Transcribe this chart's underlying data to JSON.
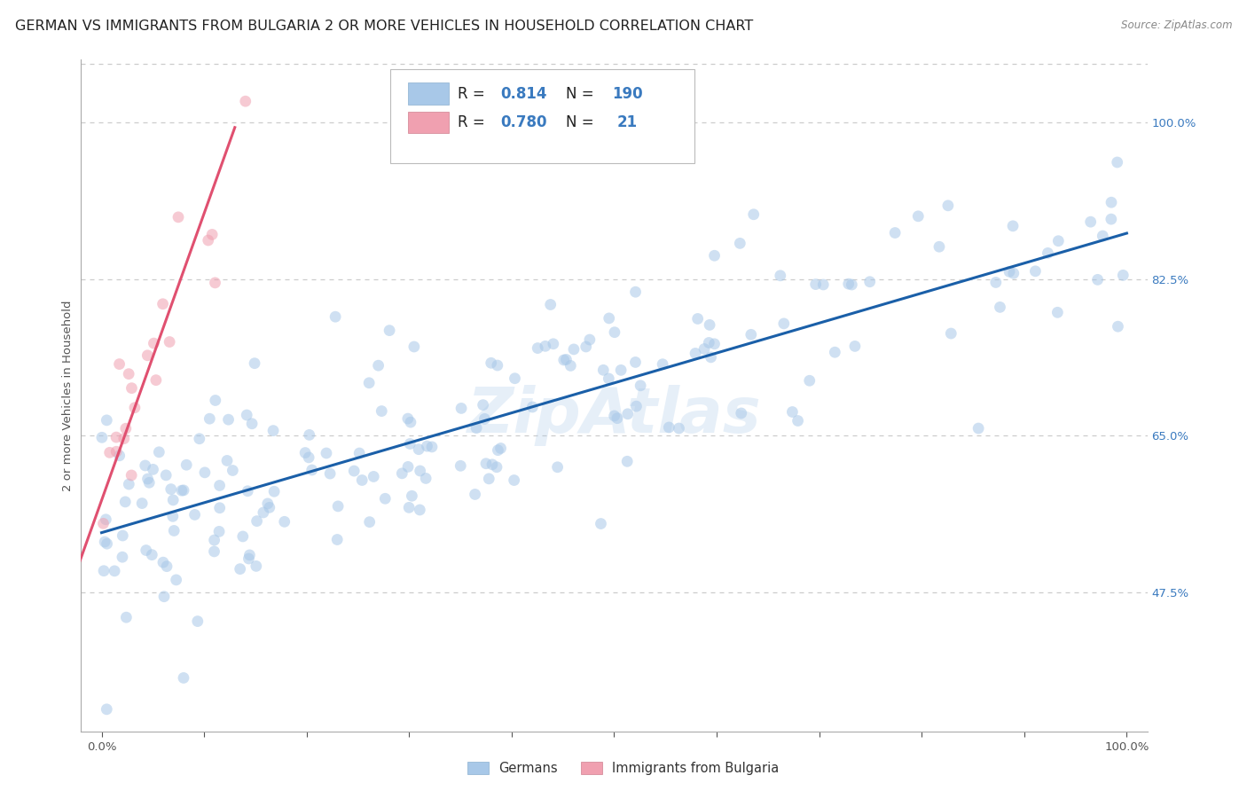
{
  "title": "GERMAN VS IMMIGRANTS FROM BULGARIA 2 OR MORE VEHICLES IN HOUSEHOLD CORRELATION CHART",
  "source": "Source: ZipAtlas.com",
  "ylabel": "2 or more Vehicles in Household",
  "watermark": "ZipAtlas",
  "legend_german_R": "0.814",
  "legend_german_N": "190",
  "legend_bulgaria_R": "0.780",
  "legend_bulgaria_N": "21",
  "xlim": [
    -0.02,
    1.02
  ],
  "ylim": [
    0.32,
    1.07
  ],
  "xticks": [
    0.0,
    0.1,
    0.2,
    0.3,
    0.4,
    0.5,
    0.6,
    0.7,
    0.8,
    0.9,
    1.0
  ],
  "xticklabels": [
    "0.0%",
    "",
    "",
    "",
    "",
    "",
    "",
    "",
    "",
    "",
    "100.0%"
  ],
  "yticks": [
    0.475,
    0.65,
    0.825,
    1.0
  ],
  "yticklabels": [
    "47.5%",
    "65.0%",
    "82.5%",
    "100.0%"
  ],
  "german_color": "#a8c8e8",
  "german_line_color": "#1a5fa8",
  "bulgaria_color": "#f0a0b0",
  "bulgaria_line_color": "#e05070",
  "title_fontsize": 11.5,
  "axis_label_fontsize": 9.5,
  "tick_fontsize": 9.5,
  "legend_fontsize": 12,
  "scatter_size": 85,
  "scatter_alpha": 0.55,
  "background_color": "#ffffff",
  "grid_color": "#cccccc",
  "german_line_intercept": 0.542,
  "german_line_slope": 0.334,
  "bulgaria_line_intercept": 0.578,
  "bulgaria_line_slope": 3.2,
  "seed": 12
}
